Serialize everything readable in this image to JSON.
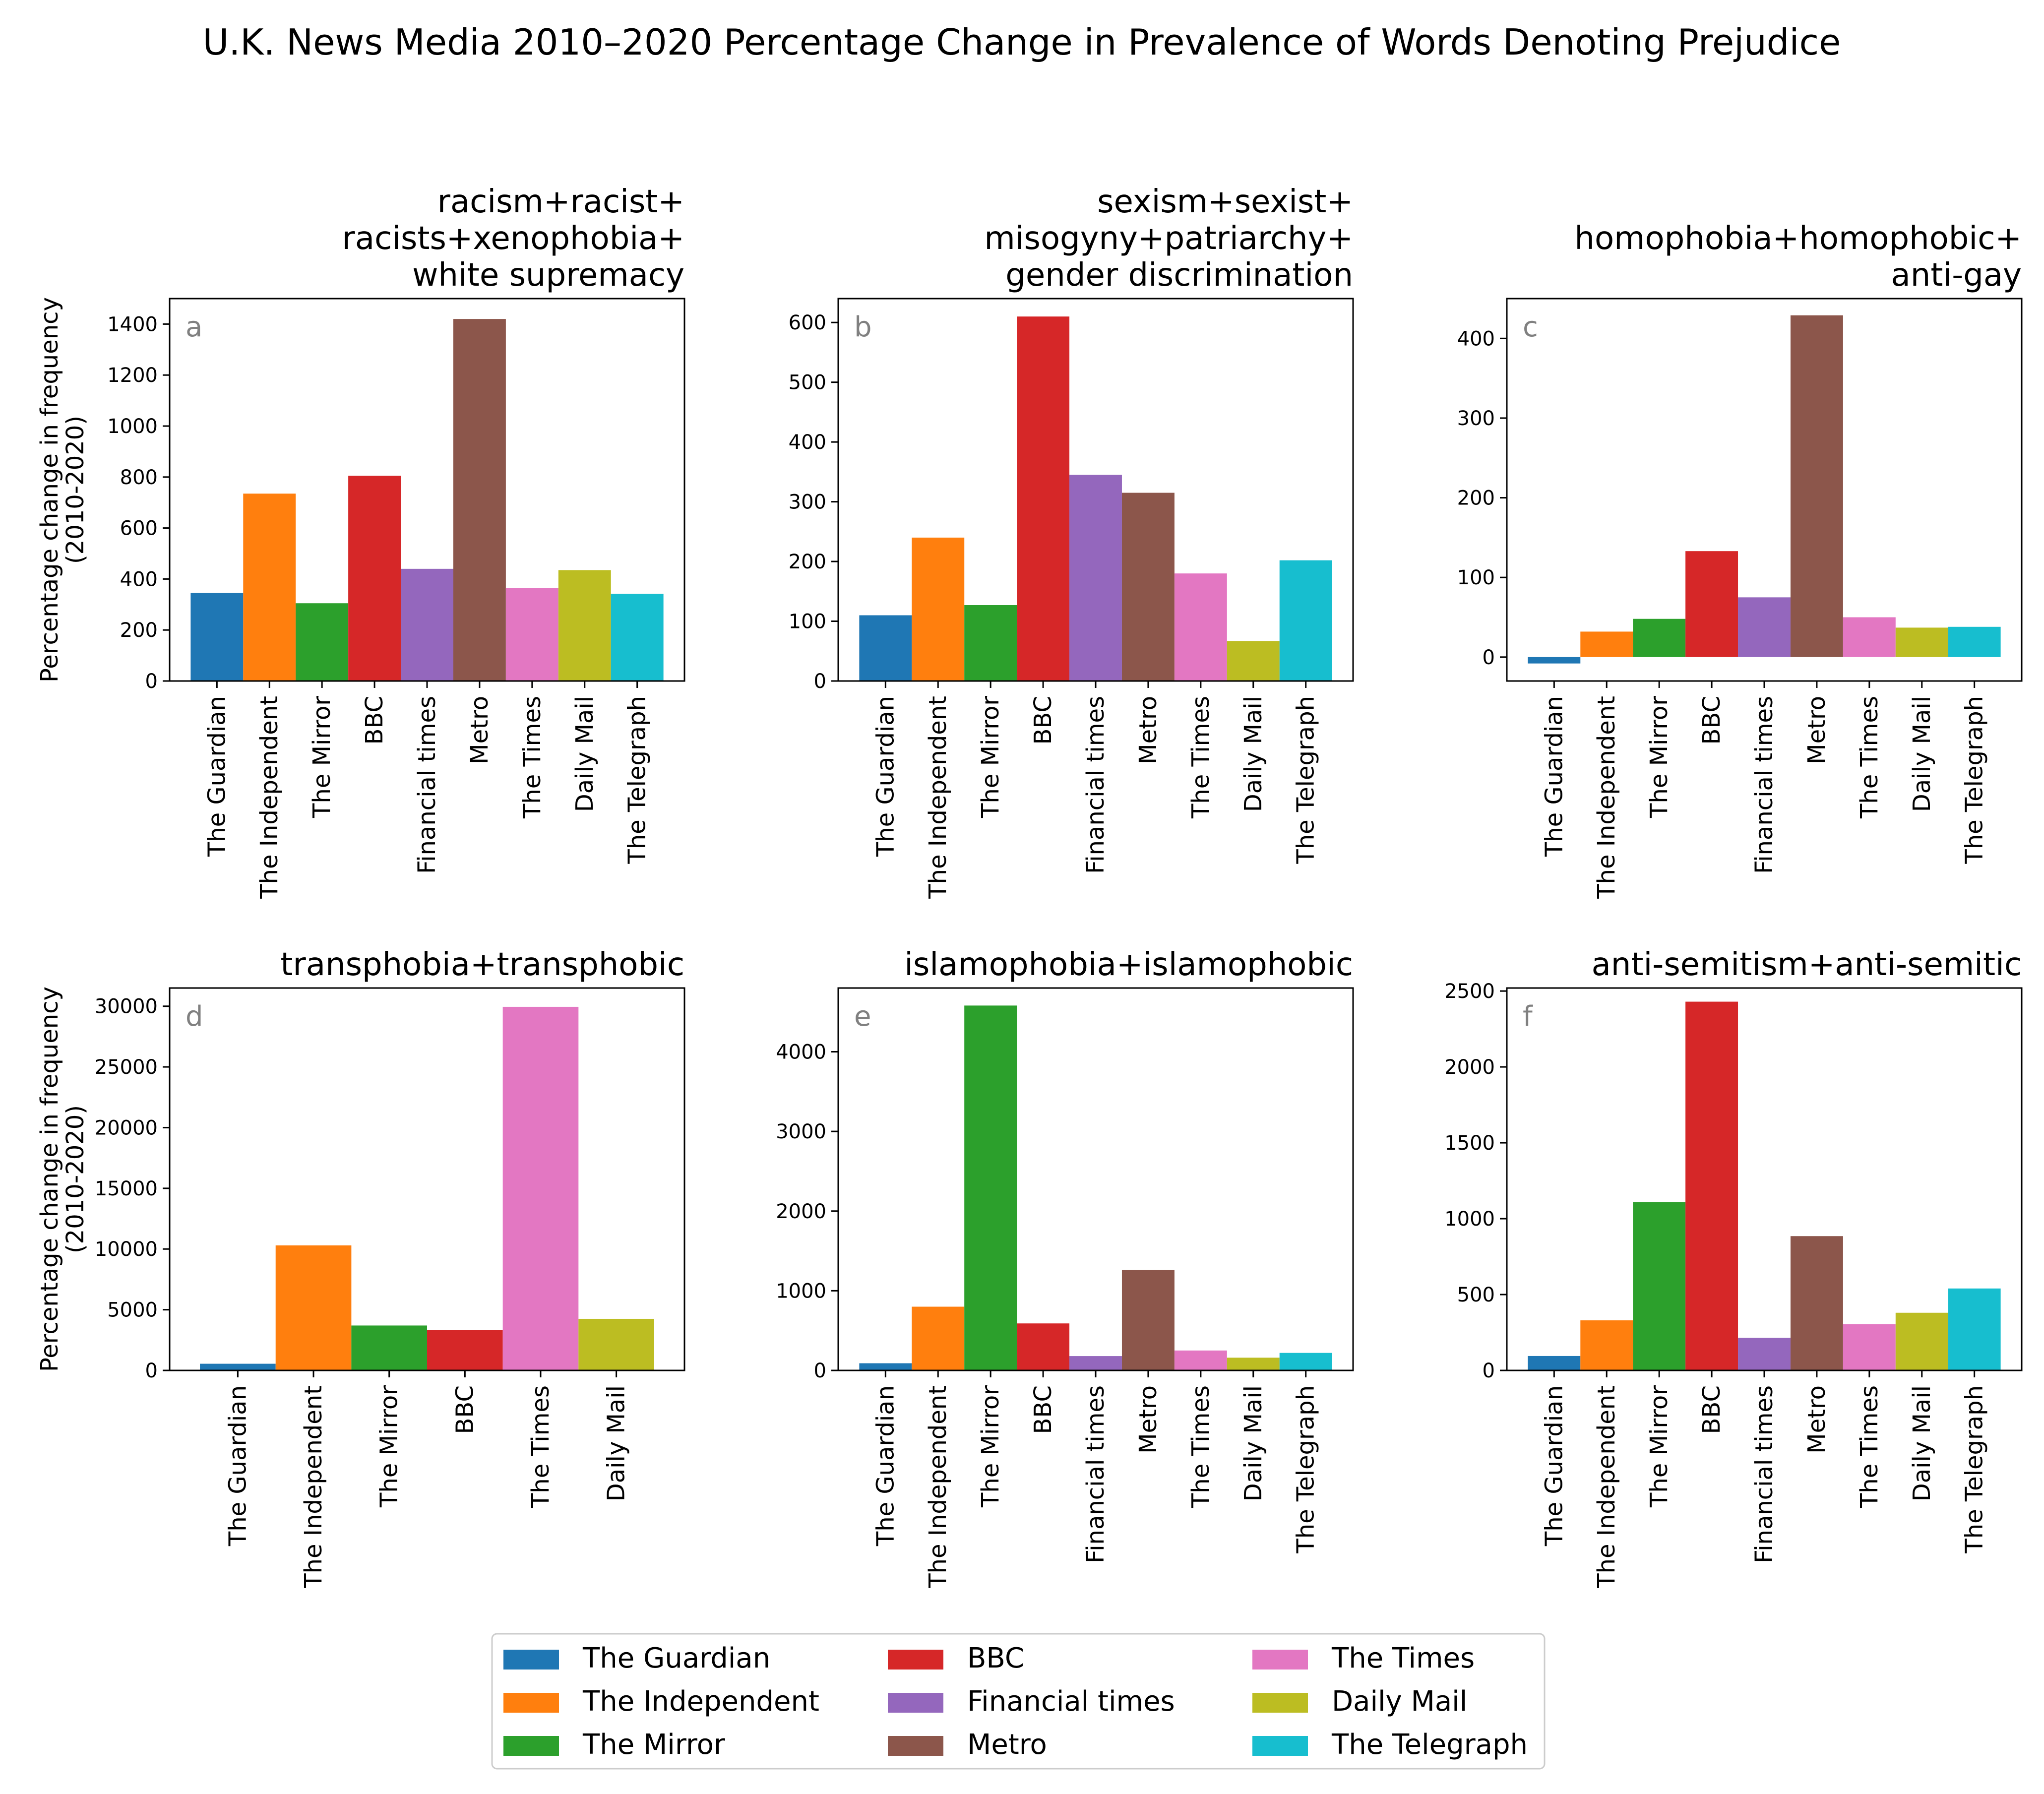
{
  "suptitle": "U.K. News Media 2010–2020 Percentage Change in Prevalence of Words Denoting Prejudice",
  "ylabel_lines": [
    "Percentage change in frequency",
    "(2010-2020)"
  ],
  "outlets": [
    {
      "name": "The Guardian",
      "color": "#1f77b4"
    },
    {
      "name": "The Independent",
      "color": "#ff7f0e"
    },
    {
      "name": "The Mirror",
      "color": "#2ca02c"
    },
    {
      "name": "BBC",
      "color": "#d62728"
    },
    {
      "name": "Financial times",
      "color": "#9467bd"
    },
    {
      "name": "Metro",
      "color": "#8c564b"
    },
    {
      "name": "The Times",
      "color": "#e377c2"
    },
    {
      "name": "Daily Mail",
      "color": "#bcbd22"
    },
    {
      "name": "The Telegraph",
      "color": "#17becf"
    }
  ],
  "chart_data": [
    {
      "type": "bar",
      "panel": "a",
      "title_lines": [
        "racism+racist+",
        "racists+xenophobia+",
        "white supremacy"
      ],
      "categories": [
        "The Guardian",
        "The Independent",
        "The Mirror",
        "BBC",
        "Financial times",
        "Metro",
        "The Times",
        "Daily Mail",
        "The Telegraph"
      ],
      "values": [
        345,
        735,
        305,
        805,
        440,
        1420,
        365,
        435,
        342
      ],
      "ylim": [
        0,
        1500
      ],
      "yticks": [
        0,
        200,
        400,
        600,
        800,
        1000,
        1200,
        1400
      ]
    },
    {
      "type": "bar",
      "panel": "b",
      "title_lines": [
        "sexism+sexist+",
        "misogyny+patriarchy+",
        "gender discrimination"
      ],
      "categories": [
        "The Guardian",
        "The Independent",
        "The Mirror",
        "BBC",
        "Financial times",
        "Metro",
        "The Times",
        "Daily Mail",
        "The Telegraph"
      ],
      "values": [
        110,
        240,
        127,
        610,
        345,
        315,
        180,
        67,
        202
      ],
      "ylim": [
        0,
        640
      ],
      "yticks": [
        0,
        100,
        200,
        300,
        400,
        500,
        600
      ]
    },
    {
      "type": "bar",
      "panel": "c",
      "title_lines": [
        "homophobia+homophobic+",
        "anti-gay"
      ],
      "categories": [
        "The Guardian",
        "The Independent",
        "The Mirror",
        "BBC",
        "Financial times",
        "Metro",
        "The Times",
        "Daily Mail",
        "The Telegraph"
      ],
      "values": [
        -8,
        32,
        48,
        133,
        75,
        429,
        50,
        37,
        38
      ],
      "ylim": [
        -30,
        450
      ],
      "yticks": [
        0,
        100,
        200,
        300,
        400
      ]
    },
    {
      "type": "bar",
      "panel": "d",
      "title_lines": [
        "transphobia+transphobic"
      ],
      "categories": [
        "The Guardian",
        "The Independent",
        "The Mirror",
        "BBC",
        "The Times",
        "Daily Mail"
      ],
      "values": [
        550,
        10300,
        3700,
        3350,
        29950,
        4250
      ],
      "ylim": [
        0,
        31500
      ],
      "yticks": [
        0,
        5000,
        10000,
        15000,
        20000,
        25000,
        30000
      ]
    },
    {
      "type": "bar",
      "panel": "e",
      "title_lines": [
        "islamophobia+islamophobic"
      ],
      "categories": [
        "The Guardian",
        "The Independent",
        "The Mirror",
        "BBC",
        "Financial times",
        "Metro",
        "The Times",
        "Daily Mail",
        "The Telegraph"
      ],
      "values": [
        90,
        800,
        4580,
        590,
        180,
        1260,
        250,
        160,
        220
      ],
      "ylim": [
        0,
        4800
      ],
      "yticks": [
        0,
        1000,
        2000,
        3000,
        4000
      ]
    },
    {
      "type": "bar",
      "panel": "f",
      "title_lines": [
        "anti-semitism+anti-semitic"
      ],
      "categories": [
        "The Guardian",
        "The Independent",
        "The Mirror",
        "BBC",
        "Financial times",
        "Metro",
        "The Times",
        "Daily Mail",
        "The Telegraph"
      ],
      "values": [
        95,
        330,
        1110,
        2430,
        215,
        885,
        305,
        380,
        540
      ],
      "ylim": [
        0,
        2520
      ],
      "yticks": [
        0,
        500,
        1000,
        1500,
        2000,
        2500
      ]
    }
  ]
}
